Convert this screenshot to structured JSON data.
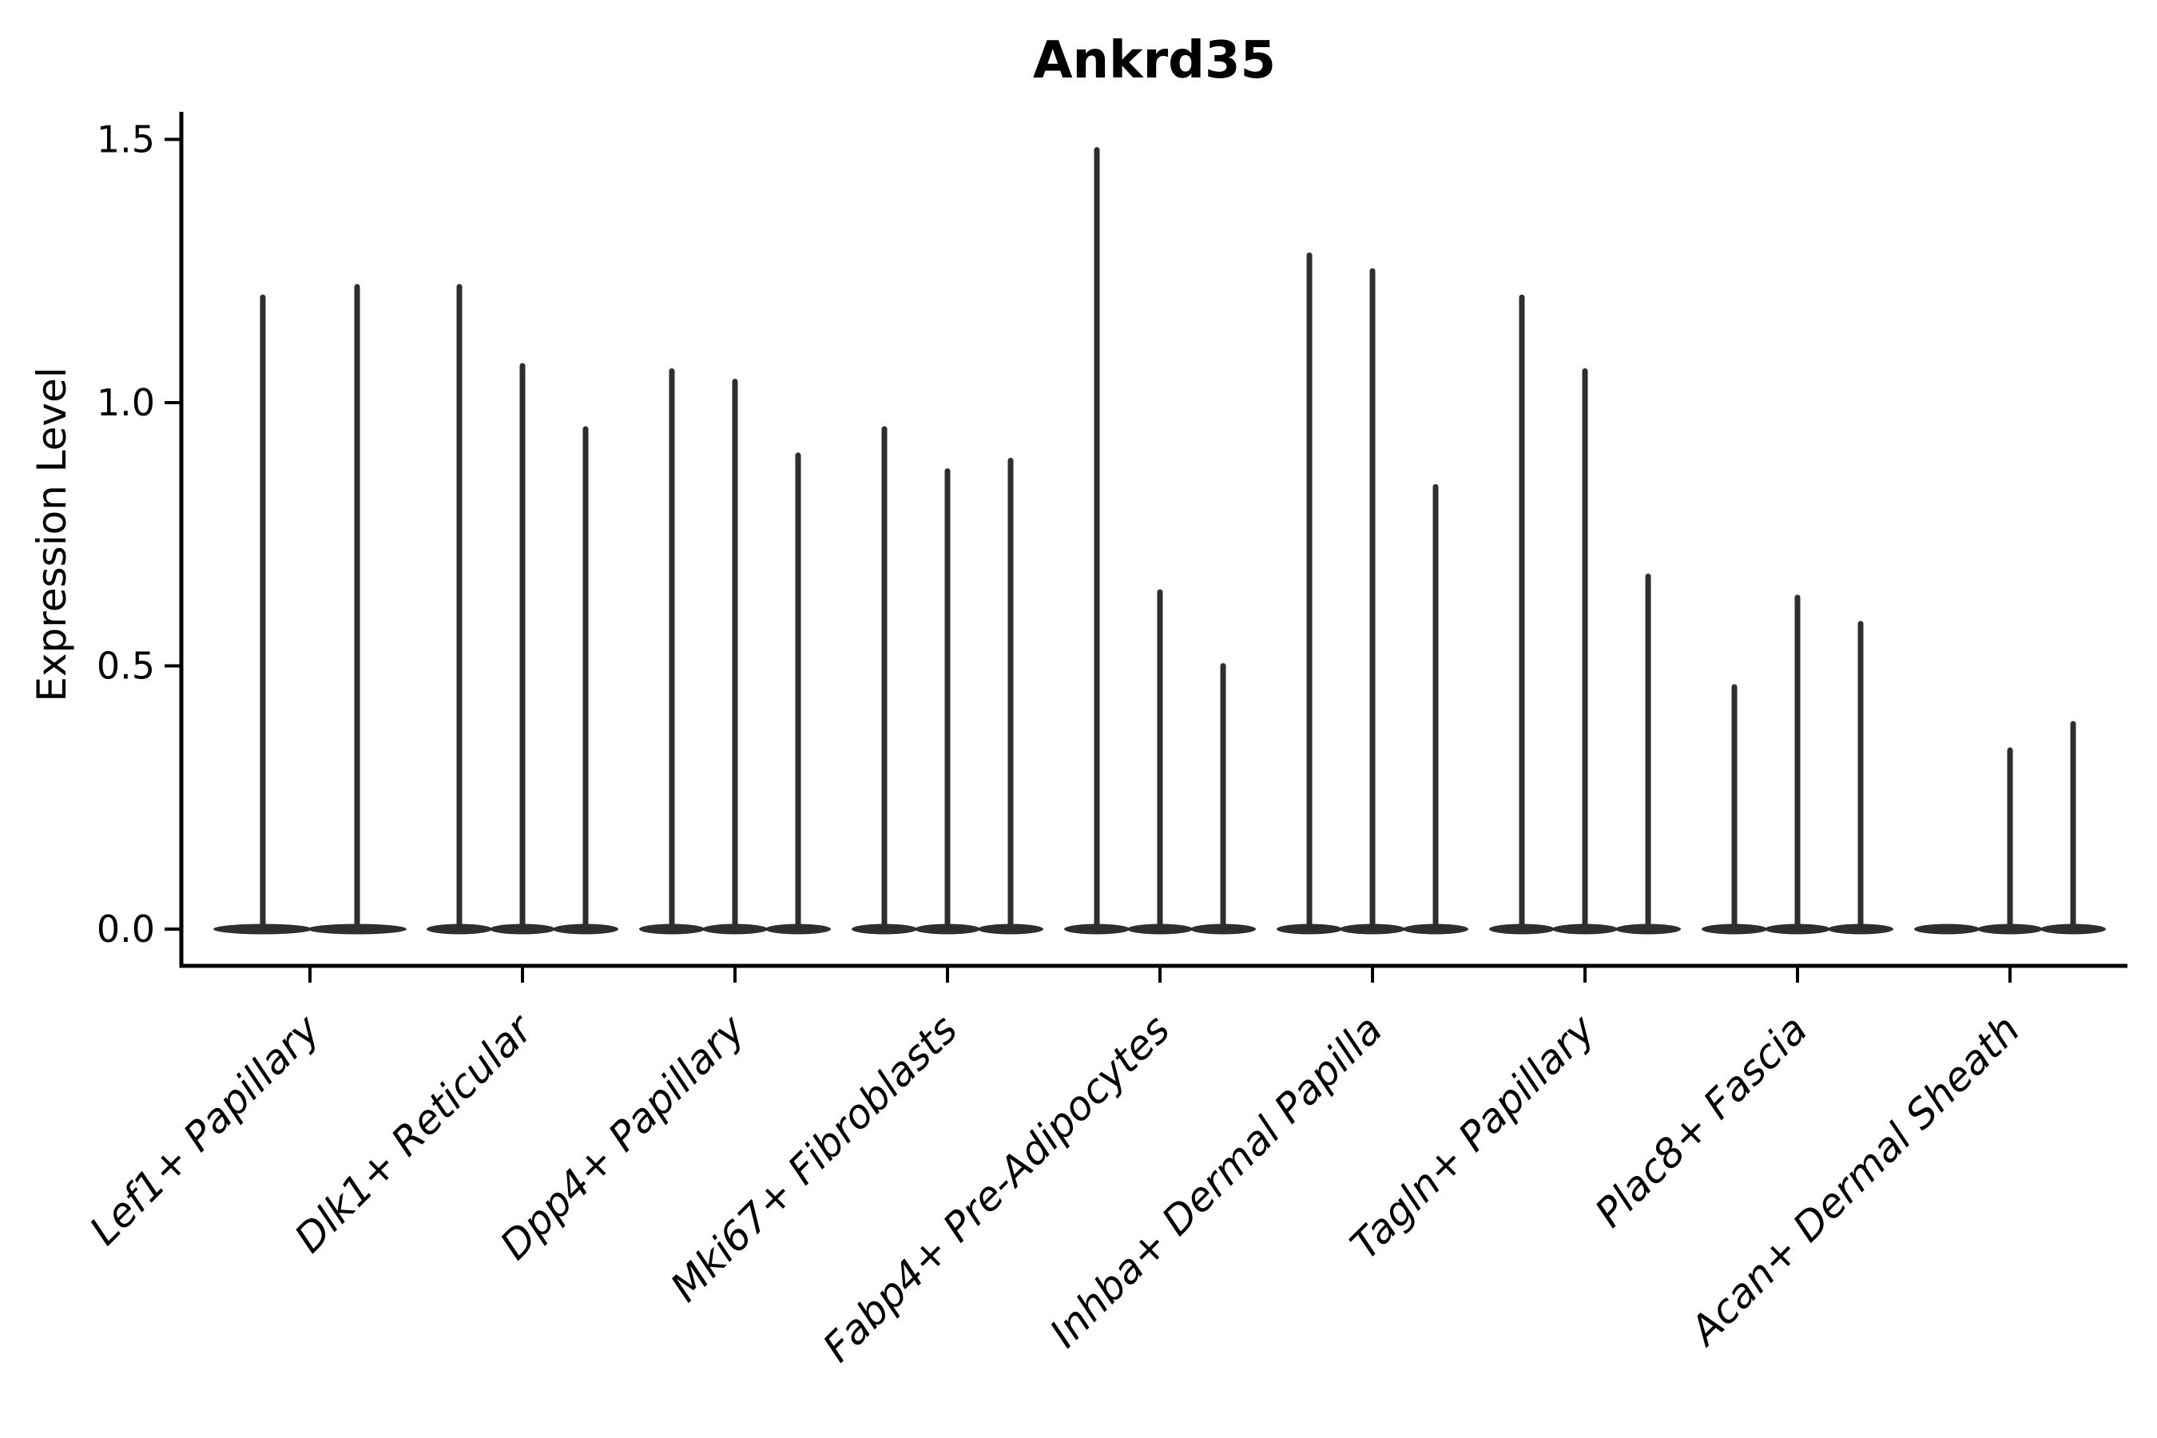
{
  "title": "Ankrd35",
  "y_axis": {
    "label": "Expression Level",
    "tick_labels": [
      "0.0",
      "0.5",
      "1.0",
      "1.5"
    ],
    "tick_values": [
      0.0,
      0.5,
      1.0,
      1.5
    ]
  },
  "chart_data": {
    "type": "violin",
    "title": "Ankrd35",
    "xlabel": "",
    "ylabel": "Expression Level",
    "ylim": [
      -0.07,
      1.57
    ],
    "yticks": [
      0.0,
      0.5,
      1.0,
      1.5
    ],
    "grid": false,
    "legend": "none",
    "style_notes": "Degenerate violins: flat dark ellipse bodies hugging 0 with one thin vertical spike per violin reaching the max expression value; despined matplotlib-style axes (left+bottom only); x tick labels italic, rotated 45 degrees",
    "categories": [
      "Lef1+ Papillary",
      "Dlk1+ Reticular",
      "Dpp4+ Papillary",
      "Mki67+ Fibroblasts",
      "Fabp4+ Pre-Adipocytes",
      "Inhba+ Dermal Papilla",
      "Tagln+ Papillary",
      "Plac8+ Fascia",
      "Acan+ Dermal Sheath"
    ],
    "groups": [
      {
        "category": "Lef1+ Papillary",
        "violin_max_values": [
          1.2,
          1.22
        ]
      },
      {
        "category": "Dlk1+ Reticular",
        "violin_max_values": [
          1.22,
          1.07,
          0.95
        ]
      },
      {
        "category": "Dpp4+ Papillary",
        "violin_max_values": [
          1.06,
          1.04,
          0.9
        ]
      },
      {
        "category": "Mki67+ Fibroblasts",
        "violin_max_values": [
          0.95,
          0.87,
          0.89
        ]
      },
      {
        "category": "Fabp4+ Pre-Adipocytes",
        "violin_max_values": [
          1.48,
          0.64,
          0.5
        ]
      },
      {
        "category": "Inhba+ Dermal Papilla",
        "violin_max_values": [
          1.28,
          1.25,
          0.84
        ]
      },
      {
        "category": "Tagln+ Papillary",
        "violin_max_values": [
          1.2,
          1.06,
          0.67
        ]
      },
      {
        "category": "Plac8+ Fascia",
        "violin_max_values": [
          0.46,
          0.63,
          0.58
        ]
      },
      {
        "category": "Acan+ Dermal Sheath",
        "violin_max_values": [
          0.0,
          0.34,
          0.39
        ]
      }
    ],
    "colors": {
      "violin": "#2e2e2e",
      "axis": "#000000",
      "background": "#ffffff"
    }
  }
}
